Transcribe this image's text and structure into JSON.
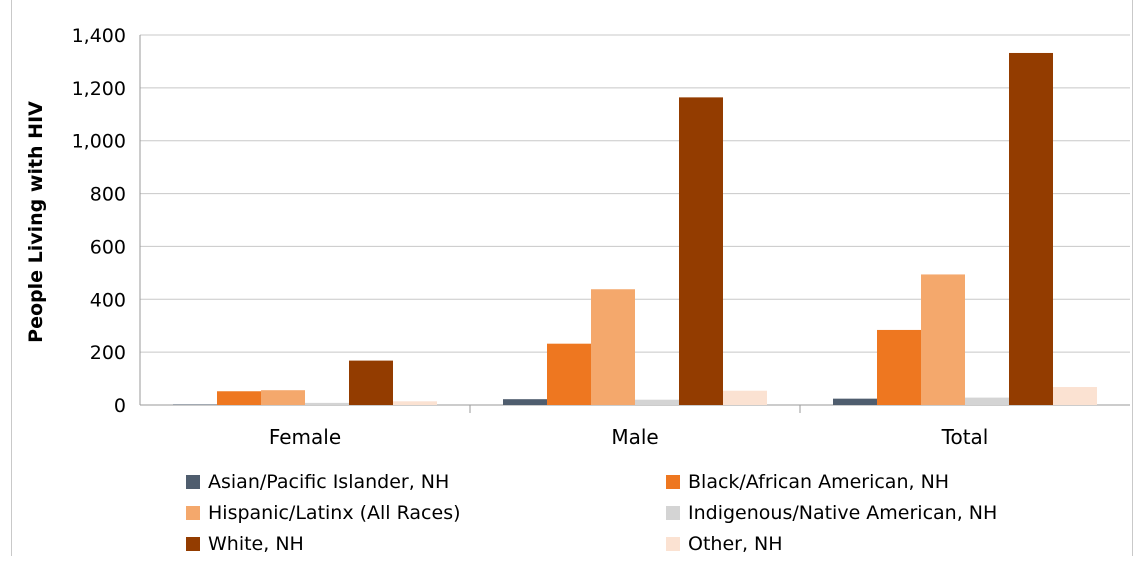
{
  "chart_data": {
    "type": "bar",
    "title": "",
    "xlabel": "",
    "ylabel": "People Living with HIV",
    "ylim": [
      0,
      1400
    ],
    "yticks": [
      "0",
      "200",
      "400",
      "600",
      "800",
      "1,000",
      "1,200",
      "1,400"
    ],
    "ytick_values": [
      0,
      200,
      400,
      600,
      800,
      1000,
      1200,
      1400
    ],
    "grid": true,
    "legend_position": "bottom",
    "categories": [
      "Female",
      "Male",
      "Total"
    ],
    "series": [
      {
        "name": "Asian/Pacific Islander, NH",
        "color": "#4f5d6e",
        "values": [
          2,
          22,
          24
        ]
      },
      {
        "name": "Black/African American, NH",
        "color": "#ee7720",
        "values": [
          52,
          232,
          284
        ]
      },
      {
        "name": "Hispanic/Latinx (All Races)",
        "color": "#f4a86c",
        "values": [
          56,
          438,
          494
        ]
      },
      {
        "name": "Indigenous/Native American, NH",
        "color": "#d4d4d4",
        "values": [
          8,
          20,
          28
        ]
      },
      {
        "name": "White, NH",
        "color": "#933c00",
        "values": [
          168,
          1164,
          1332
        ]
      },
      {
        "name": "Other, NH",
        "color": "#fbe2d2",
        "values": [
          14,
          54,
          68
        ]
      }
    ]
  }
}
